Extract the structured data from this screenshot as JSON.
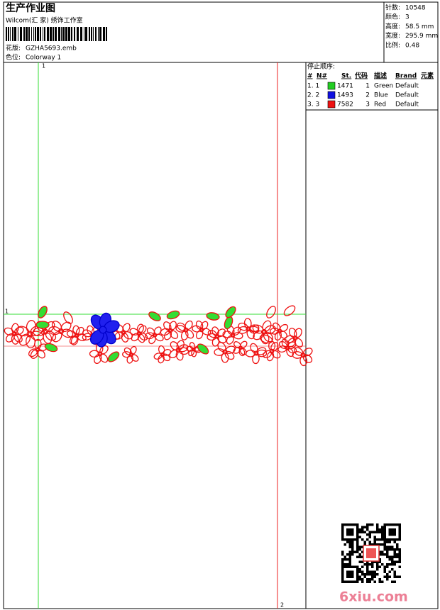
{
  "header": {
    "title": "生产作业图",
    "subtitle": "Wilcom(汇 家) 绣饰工作室",
    "design_label": "花版:",
    "design_file": "GZHA5693.emb",
    "colorway_label": "色位:",
    "colorway": "Colorway 1"
  },
  "info": [
    {
      "label": "针数:",
      "value": "10548"
    },
    {
      "label": "颜色:",
      "value": "3"
    },
    {
      "label": "高度:",
      "value": "58.5 mm"
    },
    {
      "label": "宽度:",
      "value": "295.9 mm"
    },
    {
      "label": "比例:",
      "value": "0.48"
    }
  ],
  "stop_sequence": {
    "title": "停止顺序:",
    "columns": [
      "#",
      "N#",
      "St.",
      "代码",
      "描述",
      "Brand",
      "元素"
    ],
    "rows": [
      {
        "index": "1. 1",
        "color": "#22cc22",
        "stitches": "1471",
        "code": "1",
        "name": "Green",
        "brand": "Default"
      },
      {
        "index": "2. 2",
        "color": "#1010e0",
        "stitches": "1493",
        "code": "2",
        "name": "Blue",
        "brand": "Default"
      },
      {
        "index": "3. 3",
        "color": "#ee1111",
        "stitches": "7582",
        "code": "3",
        "name": "Red",
        "brand": "Default"
      }
    ]
  },
  "design_markers": {
    "top": "1",
    "left": "1",
    "bottom": "2"
  },
  "watermark": "6xiu.com"
}
